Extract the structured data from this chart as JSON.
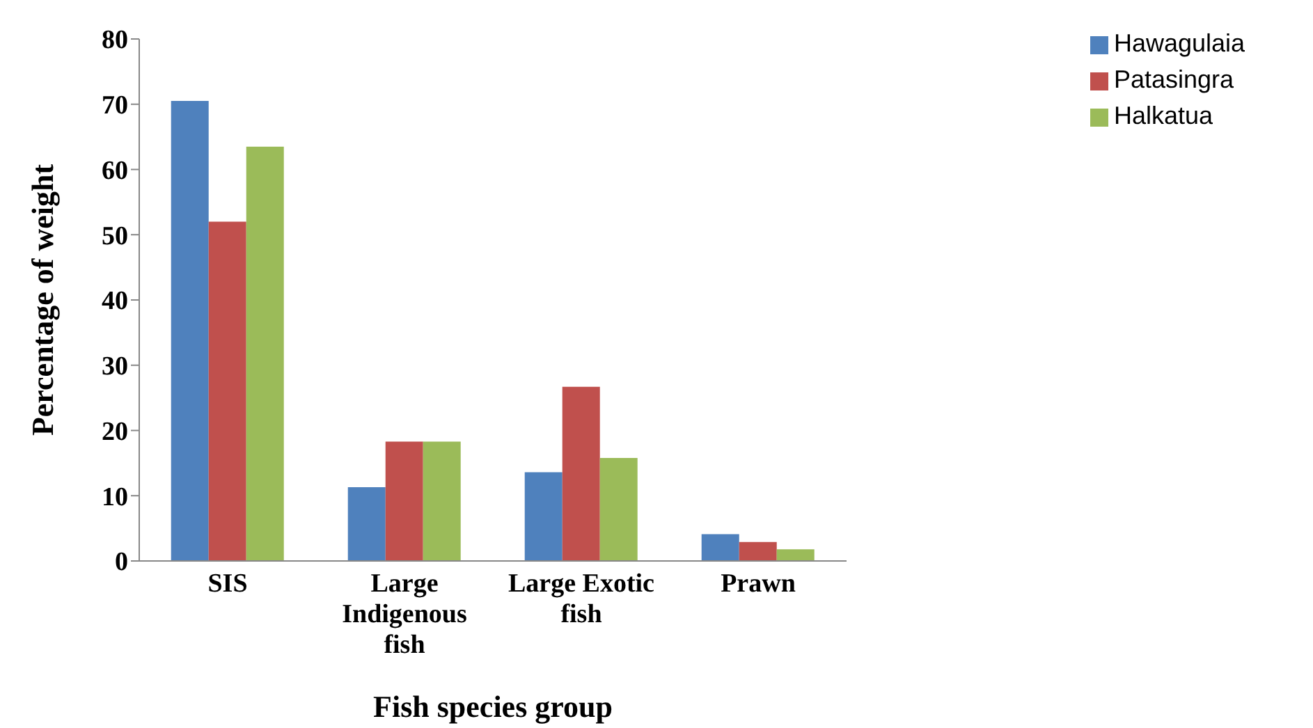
{
  "chart_data": {
    "type": "bar",
    "xlabel": "Fish species group",
    "ylabel": "Percentage of weight",
    "categories": [
      "SIS",
      "Large Indigenous fish",
      "Large Exotic fish",
      "Prawn"
    ],
    "series": [
      {
        "name": "Hawagulaia",
        "color": "#4f81bd",
        "values": [
          70.5,
          11.3,
          13.6,
          4.1
        ]
      },
      {
        "name": "Patasingra",
        "color": "#c0504d",
        "values": [
          52,
          18.3,
          26.7,
          2.9
        ]
      },
      {
        "name": "Halkatua",
        "color": "#9bbb59",
        "values": [
          63.5,
          18.3,
          15.8,
          1.8
        ]
      }
    ],
    "ylim": [
      0,
      80
    ],
    "yticks": [
      0,
      10,
      20,
      30,
      40,
      50,
      60,
      70,
      80
    ],
    "grid": false,
    "legend": "top right"
  }
}
